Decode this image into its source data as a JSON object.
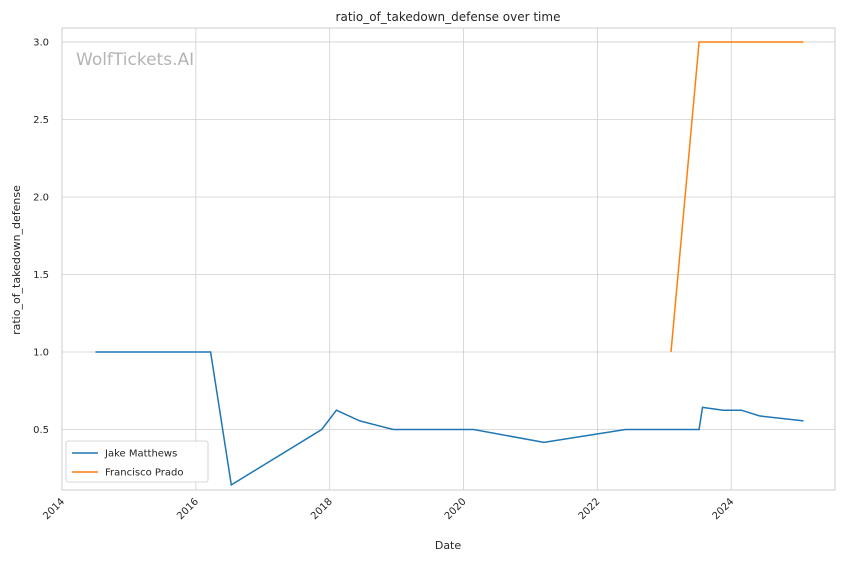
{
  "chart_data": {
    "type": "line",
    "title": "ratio_of_takedown_defense over time",
    "xlabel": "Date",
    "ylabel": "ratio_of_takedown_defense",
    "watermark": "WolfTickets.AI",
    "legend_position": "lower-left",
    "grid": true,
    "xlim": [
      2014.0,
      2025.55
    ],
    "ylim": [
      0.11,
      3.09
    ],
    "x_ticks": [
      "2014",
      "2016",
      "2018",
      "2020",
      "2022",
      "2024"
    ],
    "y_ticks": [
      "0.5",
      "1.0",
      "1.5",
      "2.0",
      "2.5",
      "3.0"
    ],
    "series": [
      {
        "name": "Jake Matthews",
        "color": "#1f77b4",
        "points": [
          {
            "x": 2014.5,
            "y": 1.0
          },
          {
            "x": 2016.22,
            "y": 1.0
          },
          {
            "x": 2016.53,
            "y": 0.143
          },
          {
            "x": 2017.88,
            "y": 0.5
          },
          {
            "x": 2018.1,
            "y": 0.625
          },
          {
            "x": 2018.45,
            "y": 0.556
          },
          {
            "x": 2018.95,
            "y": 0.5
          },
          {
            "x": 2020.15,
            "y": 0.5
          },
          {
            "x": 2021.2,
            "y": 0.417
          },
          {
            "x": 2022.42,
            "y": 0.5
          },
          {
            "x": 2023.52,
            "y": 0.5
          },
          {
            "x": 2023.57,
            "y": 0.643
          },
          {
            "x": 2023.88,
            "y": 0.625
          },
          {
            "x": 2024.15,
            "y": 0.625
          },
          {
            "x": 2024.42,
            "y": 0.588
          },
          {
            "x": 2025.08,
            "y": 0.556
          }
        ]
      },
      {
        "name": "Francisco Prado",
        "color": "#ff7f0e",
        "points": [
          {
            "x": 2023.1,
            "y": 1.0
          },
          {
            "x": 2023.52,
            "y": 3.0
          },
          {
            "x": 2025.08,
            "y": 3.0
          }
        ]
      }
    ]
  }
}
